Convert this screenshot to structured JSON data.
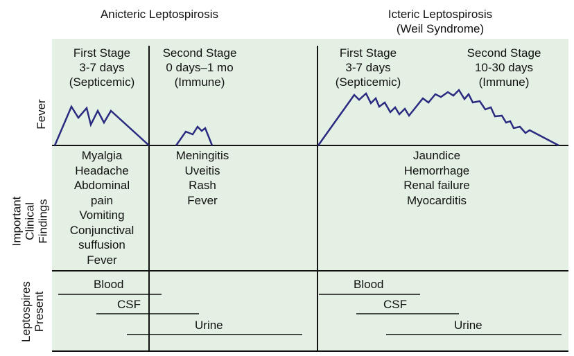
{
  "headers": {
    "anicteric": "Anicteric Leptospirosis",
    "icteric_line1": "Icteric Leptospirosis",
    "icteric_line2": "(Weil Syndrome)"
  },
  "stages": [
    {
      "name": "First Stage",
      "duration": "3-7 days",
      "phase": "(Septicemic)"
    },
    {
      "name": "Second Stage",
      "duration": "0 days–1 mo",
      "phase": "(Immune)"
    },
    {
      "name": "First Stage",
      "duration": "3-7 days",
      "phase": "(Septicemic)"
    },
    {
      "name": "Second Stage",
      "duration": "10-30 days",
      "phase": "(Immune)"
    }
  ],
  "row_labels": {
    "fever": "Fever",
    "findings_line1": "Important",
    "findings_line2": "Clinical",
    "findings_line3": "Findings",
    "leptospires_line1": "Leptospires",
    "leptospires_line2": "Present"
  },
  "findings": {
    "anicteric_first": [
      "Myalgia",
      "Headache",
      "Abdominal",
      "pain",
      "Vomiting",
      "Conjunctival",
      "suffusion",
      "Fever"
    ],
    "anicteric_second": [
      "Meningitis",
      "Uveitis",
      "Rash",
      "Fever"
    ],
    "icteric": [
      "Jaundice",
      "Hemorrhage",
      "Renal failure",
      "Myocarditis"
    ]
  },
  "leptospires": {
    "anicteric": [
      "Blood",
      "CSF",
      "Urine"
    ],
    "icteric": [
      "Blood",
      "CSF",
      "Urine"
    ]
  },
  "colors": {
    "panel": "#e3f0e3",
    "curve": "#2a2a80",
    "line": "#111111"
  }
}
